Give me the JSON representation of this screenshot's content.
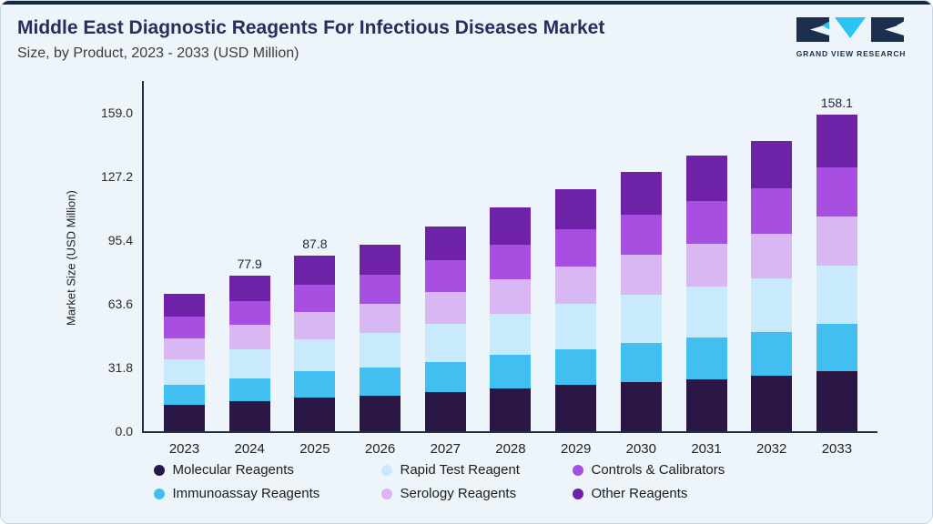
{
  "header": {
    "title": "Middle East Diagnostic Reagents For Infectious Diseases Market",
    "subtitle": "Size, by Product, 2023 - 2033 (USD Million)",
    "logo_text": "GRAND VIEW RESEARCH"
  },
  "chart_data": {
    "type": "bar",
    "stacked": true,
    "title": "Middle East Diagnostic Reagents For Infectious Diseases Market Size, by Product, 2023 - 2033 (USD Million)",
    "xlabel": "",
    "ylabel": "Market Size (USD Million)",
    "ylim": [
      0,
      159.0
    ],
    "yticks": [
      0.0,
      31.8,
      63.6,
      95.4,
      127.2,
      159.0
    ],
    "grid": false,
    "legend_position": "bottom",
    "categories": [
      "2023",
      "2024",
      "2025",
      "2026",
      "2027",
      "2028",
      "2029",
      "2030",
      "2031",
      "2032",
      "2033"
    ],
    "series": [
      {
        "name": "Molecular Reagents",
        "color": "#2b1745",
        "values": [
          13.0,
          14.8,
          16.7,
          17.7,
          19.4,
          21.2,
          23.0,
          24.7,
          26.1,
          27.6,
          30.0
        ]
      },
      {
        "name": "Immunoassay Reagents",
        "color": "#41bff1",
        "values": [
          10.3,
          11.7,
          13.2,
          14.0,
          15.3,
          16.8,
          18.1,
          19.5,
          20.6,
          21.8,
          23.7
        ]
      },
      {
        "name": "Rapid Test Reagent",
        "color": "#c9eafc",
        "values": [
          12.7,
          14.4,
          16.2,
          17.3,
          18.9,
          20.7,
          22.4,
          24.0,
          25.5,
          26.9,
          29.2
        ]
      },
      {
        "name": "Serology Reagents",
        "color": "#d9b7f3",
        "values": [
          10.6,
          12.1,
          13.6,
          14.5,
          15.9,
          17.3,
          18.7,
          20.1,
          21.3,
          22.5,
          24.5
        ]
      },
      {
        "name": "Controls & Calibrators",
        "color": "#a64fe0",
        "values": [
          10.6,
          12.1,
          13.6,
          14.5,
          15.9,
          17.3,
          18.7,
          20.1,
          21.3,
          22.5,
          24.5
        ]
      },
      {
        "name": "Other Reagents",
        "color": "#6e22a8",
        "values": [
          11.3,
          12.8,
          14.5,
          15.4,
          16.9,
          18.5,
          20.0,
          21.4,
          22.8,
          23.9,
          26.2
        ]
      }
    ],
    "totals": [
      68.5,
      77.9,
      87.8,
      93.4,
      102.3,
      111.8,
      120.9,
      129.8,
      137.6,
      145.2,
      158.1
    ],
    "total_labels": {
      "2024": "77.9",
      "2025": "87.8",
      "2033": "158.1"
    },
    "legend_order": [
      0,
      2,
      4,
      1,
      3,
      5
    ]
  }
}
